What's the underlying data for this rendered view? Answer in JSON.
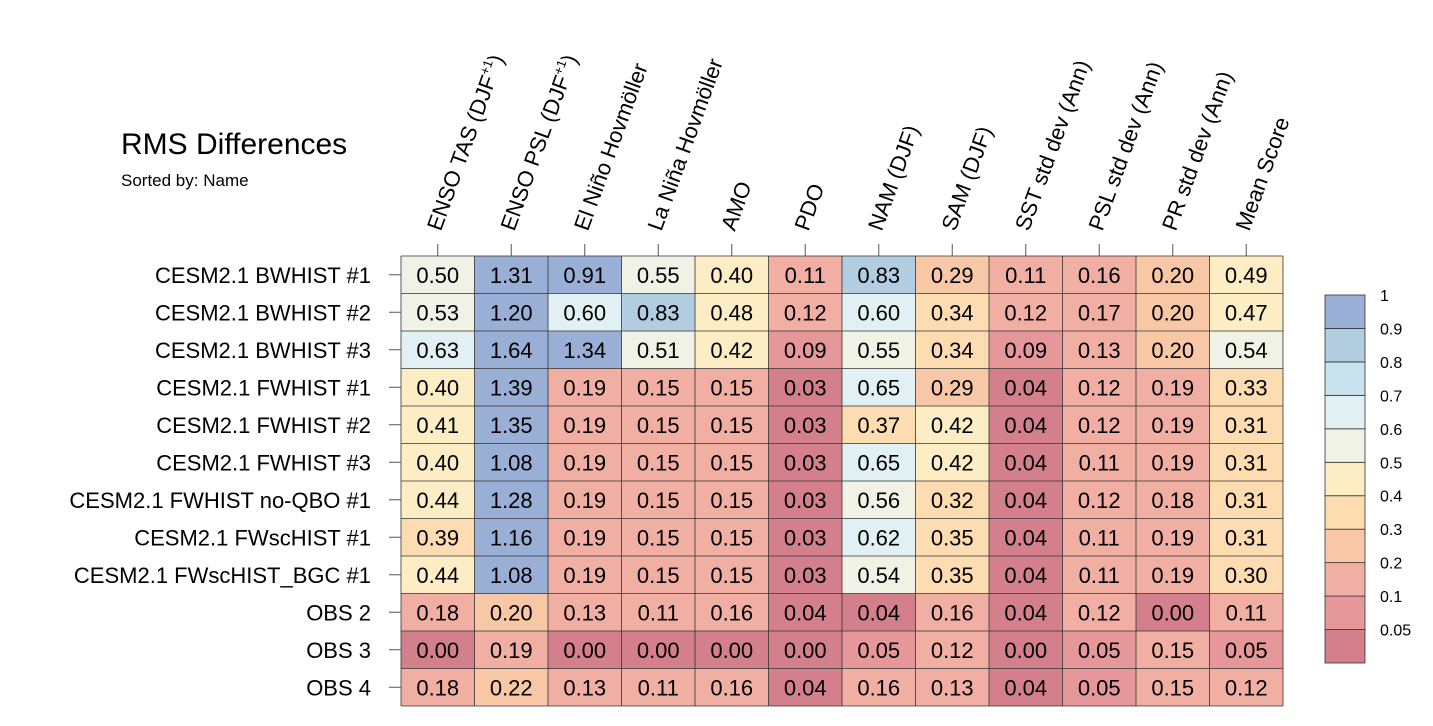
{
  "chart_data": {
    "type": "heatmap",
    "title": "RMS Differences",
    "subtitle": "Sorted by: Name",
    "columns": [
      {
        "pre": "ENSO TAS (DJF",
        "sup": "+1",
        "post": ")"
      },
      {
        "pre": "ENSO PSL (DJF",
        "sup": "+1",
        "post": ")"
      },
      {
        "pre": "El Niño Hovmöller",
        "sup": "",
        "post": ""
      },
      {
        "pre": "La Niña Hovmöller",
        "sup": "",
        "post": ""
      },
      {
        "pre": "AMO",
        "sup": "",
        "post": ""
      },
      {
        "pre": "PDO",
        "sup": "",
        "post": ""
      },
      {
        "pre": "NAM (DJF)",
        "sup": "",
        "post": ""
      },
      {
        "pre": "SAM (DJF)",
        "sup": "",
        "post": ""
      },
      {
        "pre": "SST std dev (Ann)",
        "sup": "",
        "post": ""
      },
      {
        "pre": "PSL std dev (Ann)",
        "sup": "",
        "post": ""
      },
      {
        "pre": "PR std dev (Ann)",
        "sup": "",
        "post": ""
      },
      {
        "pre": "Mean Score",
        "sup": "",
        "post": ""
      }
    ],
    "rows": [
      "CESM2.1 BWHIST #1",
      "CESM2.1 BWHIST #2",
      "CESM2.1 BWHIST #3",
      "CESM2.1 FWHIST #1",
      "CESM2.1 FWHIST #2",
      "CESM2.1 FWHIST #3",
      "CESM2.1 FWHIST no-QBO #1",
      "CESM2.1 FWscHIST #1",
      "CESM2.1 FWscHIST_BGC #1",
      "OBS 2",
      "OBS 3",
      "OBS 4"
    ],
    "values": [
      [
        "0.50",
        "1.31",
        "0.91",
        "0.55",
        "0.40",
        "0.11",
        "0.83",
        "0.29",
        "0.11",
        "0.16",
        "0.20",
        "0.49"
      ],
      [
        "0.53",
        "1.20",
        "0.60",
        "0.83",
        "0.48",
        "0.12",
        "0.60",
        "0.34",
        "0.12",
        "0.17",
        "0.20",
        "0.47"
      ],
      [
        "0.63",
        "1.64",
        "1.34",
        "0.51",
        "0.42",
        "0.09",
        "0.55",
        "0.34",
        "0.09",
        "0.13",
        "0.20",
        "0.54"
      ],
      [
        "0.40",
        "1.39",
        "0.19",
        "0.15",
        "0.15",
        "0.03",
        "0.65",
        "0.29",
        "0.04",
        "0.12",
        "0.19",
        "0.33"
      ],
      [
        "0.41",
        "1.35",
        "0.19",
        "0.15",
        "0.15",
        "0.03",
        "0.37",
        "0.42",
        "0.04",
        "0.12",
        "0.19",
        "0.31"
      ],
      [
        "0.40",
        "1.08",
        "0.19",
        "0.15",
        "0.15",
        "0.03",
        "0.65",
        "0.42",
        "0.04",
        "0.11",
        "0.19",
        "0.31"
      ],
      [
        "0.44",
        "1.28",
        "0.19",
        "0.15",
        "0.15",
        "0.03",
        "0.56",
        "0.32",
        "0.04",
        "0.12",
        "0.18",
        "0.31"
      ],
      [
        "0.39",
        "1.16",
        "0.19",
        "0.15",
        "0.15",
        "0.03",
        "0.62",
        "0.35",
        "0.04",
        "0.11",
        "0.19",
        "0.31"
      ],
      [
        "0.44",
        "1.08",
        "0.19",
        "0.15",
        "0.15",
        "0.03",
        "0.54",
        "0.35",
        "0.04",
        "0.11",
        "0.19",
        "0.30"
      ],
      [
        "0.18",
        "0.20",
        "0.13",
        "0.11",
        "0.16",
        "0.04",
        "0.04",
        "0.16",
        "0.04",
        "0.12",
        "0.00",
        "0.11"
      ],
      [
        "0.00",
        "0.19",
        "0.00",
        "0.00",
        "0.00",
        "0.00",
        "0.05",
        "0.12",
        "0.00",
        "0.05",
        "0.15",
        "0.05"
      ],
      [
        "0.18",
        "0.22",
        "0.13",
        "0.11",
        "0.16",
        "0.04",
        "0.16",
        "0.13",
        "0.04",
        "0.05",
        "0.15",
        "0.12"
      ]
    ],
    "colorbar": {
      "levels": [
        0.05,
        0.1,
        0.2,
        0.3,
        0.4,
        0.5,
        0.6,
        0.7,
        0.8,
        0.9,
        1
      ],
      "tick_labels": [
        "0.05",
        "0.1",
        "0.2",
        "0.3",
        "0.4",
        "0.5",
        "0.6",
        "0.7",
        "0.8",
        "0.9",
        "1"
      ],
      "colors": [
        "#d47f8c",
        "#e5979a",
        "#f0afa2",
        "#f8c7a6",
        "#fcdcb0",
        "#fdedc5",
        "#f1f2e6",
        "#e1f0f2",
        "#c9e3ee",
        "#b2cce0",
        "#9aafd5"
      ],
      "placement": "right"
    }
  }
}
